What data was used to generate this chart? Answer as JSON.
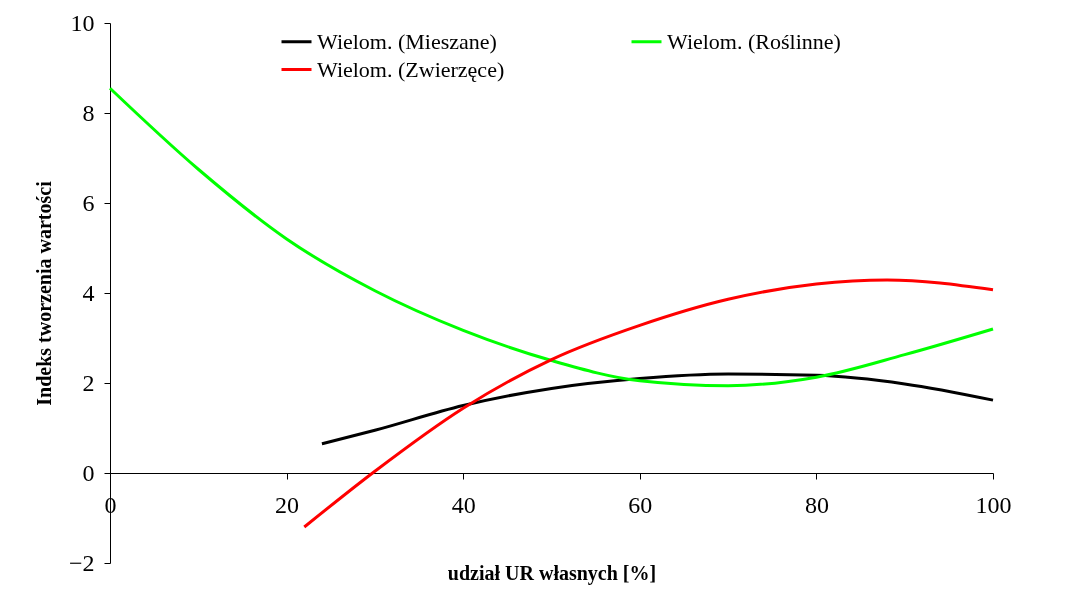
{
  "chart_data": {
    "type": "line",
    "xlabel": "udział UR własnych [%]",
    "ylabel": "Indeks tworzenia wartości",
    "xlim": [
      0,
      100
    ],
    "ylim": [
      -2,
      10
    ],
    "xticks": [
      0,
      20,
      40,
      60,
      80,
      100
    ],
    "yticks": [
      -2,
      0,
      2,
      4,
      6,
      8,
      10
    ],
    "grid": false,
    "legend": "top right",
    "marker": "none",
    "line_style": "solid",
    "series": [
      {
        "name": "Wielom. (Mieszane)",
        "color": "#000000",
        "x": [
          24,
          30,
          40,
          50,
          60,
          70,
          80,
          90,
          100
        ],
        "values": [
          0.65,
          0.95,
          1.5,
          1.88,
          2.1,
          2.2,
          2.17,
          1.98,
          1.62
        ]
      },
      {
        "name": "Wielom. (Roślinne)",
        "color": "#00ff00",
        "x": [
          0,
          10,
          20,
          30,
          40,
          50,
          60,
          70,
          80,
          90,
          100
        ],
        "values": [
          8.55,
          6.75,
          5.2,
          4.05,
          3.17,
          2.5,
          2.05,
          1.94,
          2.13,
          2.63,
          3.2
        ]
      },
      {
        "name": "Wielom. (Zwierzęce)",
        "color": "#ff0000",
        "x": [
          22,
          30,
          40,
          50,
          60,
          70,
          80,
          88,
          100
        ],
        "values": [
          -1.2,
          0.04,
          1.44,
          2.52,
          3.28,
          3.86,
          4.2,
          4.29,
          4.07
        ]
      }
    ]
  }
}
